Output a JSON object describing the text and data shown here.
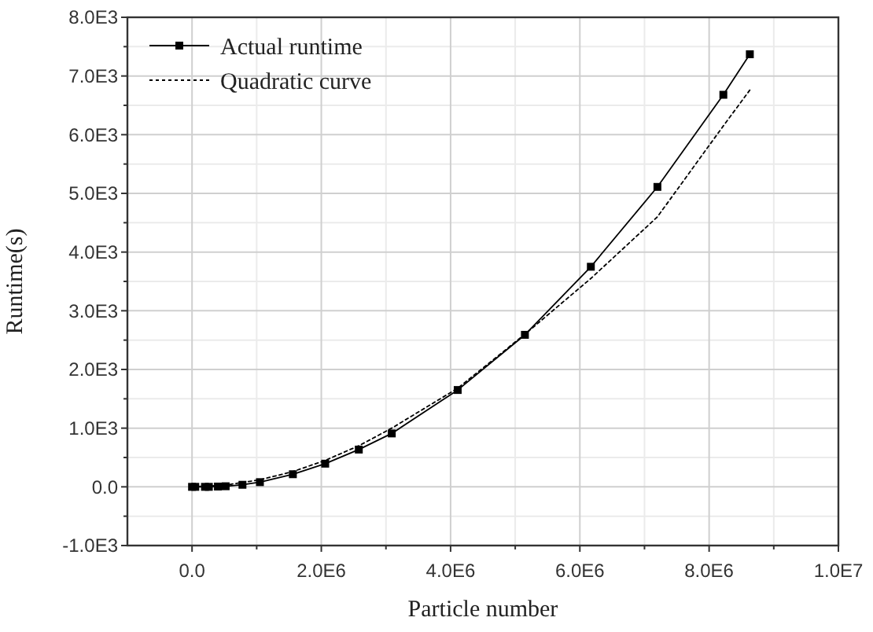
{
  "chart_data": {
    "type": "line",
    "xlabel": "Particle number",
    "ylabel": "Runtime(s)",
    "xlim": [
      -1000000,
      10000000
    ],
    "ylim": [
      -1000,
      8000
    ],
    "xticks": [
      {
        "value": 0,
        "label": "0.0"
      },
      {
        "value": 2000000,
        "label": "2.0E6"
      },
      {
        "value": 4000000,
        "label": "4.0E6"
      },
      {
        "value": 6000000,
        "label": "6.0E6"
      },
      {
        "value": 8000000,
        "label": "8.0E6"
      },
      {
        "value": 10000000,
        "label": "1.0E7"
      }
    ],
    "yticks": [
      {
        "value": -1000,
        "label": "-1.0E3"
      },
      {
        "value": 0,
        "label": "0.0"
      },
      {
        "value": 1000,
        "label": "1.0E3"
      },
      {
        "value": 2000,
        "label": "2.0E3"
      },
      {
        "value": 3000,
        "label": "3.0E3"
      },
      {
        "value": 4000,
        "label": "4.0E3"
      },
      {
        "value": 5000,
        "label": "5.0E3"
      },
      {
        "value": 6000,
        "label": "6.0E3"
      },
      {
        "value": 7000,
        "label": "7.0E3"
      },
      {
        "value": 8000,
        "label": "8.0E3"
      }
    ],
    "grid": true,
    "legend": "top left",
    "series": [
      {
        "name": "Actual runtime",
        "color": "#000000",
        "marker": "square",
        "line_style": "solid",
        "x": [
          0,
          50000,
          200000,
          260000,
          400000,
          520000,
          780000,
          1050000,
          1560000,
          2060000,
          2580000,
          3090000,
          4110000,
          5150000,
          6170000,
          7200000,
          8220000,
          8630000
        ],
        "values": [
          0,
          0,
          0,
          0,
          5,
          10,
          35,
          80,
          215,
          395,
          635,
          910,
          1650,
          2590,
          3750,
          5110,
          6680,
          7370
        ]
      },
      {
        "name": "Quadratic curve",
        "color": "#000000",
        "marker": "none",
        "line_style": "dotted",
        "x": [
          0,
          520000,
          1050000,
          1560000,
          2060000,
          2580000,
          3090000,
          4110000,
          5150000,
          6170000,
          7200000,
          8220000,
          8630000
        ],
        "values": [
          0,
          30,
          120,
          260,
          450,
          700,
          1000,
          1680,
          2600,
          3550,
          4600,
          6150,
          6760
        ]
      }
    ]
  }
}
